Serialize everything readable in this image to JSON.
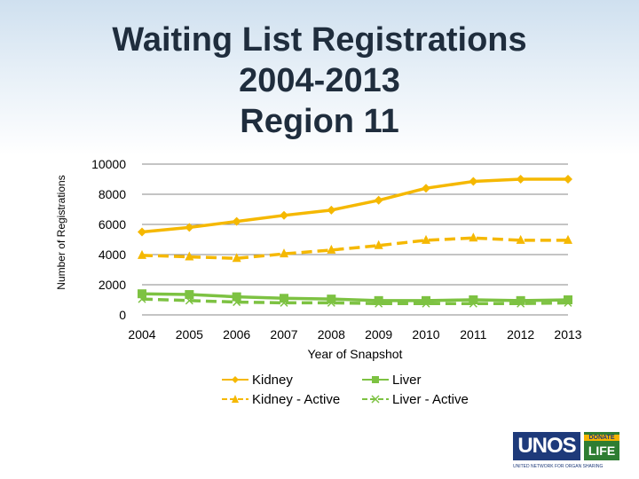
{
  "slide": {
    "title_lines": [
      "Waiting List Registrations",
      "2004-2013",
      "Region 11"
    ]
  },
  "chart_data": {
    "type": "line",
    "title": "",
    "xlabel": "Year of Snapshot",
    "ylabel": "Number of Registrations",
    "x": [
      "2004",
      "2005",
      "2006",
      "2007",
      "2008",
      "2009",
      "2010",
      "2011",
      "2012",
      "2013"
    ],
    "ylim": [
      0,
      10000
    ],
    "yticks": [
      "0",
      "2000",
      "4000",
      "6000",
      "8000",
      "10000"
    ],
    "grid": true,
    "legend_position": "bottom",
    "series": [
      {
        "name": "Kidney",
        "values": [
          5500,
          5800,
          6200,
          6600,
          6950,
          7600,
          8400,
          8850,
          9000,
          9000
        ],
        "color": "#f5b800",
        "dash": "solid",
        "marker": "diamond"
      },
      {
        "name": "Kidney - Active",
        "values": [
          3950,
          3850,
          3750,
          4050,
          4300,
          4600,
          4950,
          5100,
          4950,
          4950
        ],
        "color": "#f5b800",
        "dash": "dashed",
        "marker": "triangle"
      },
      {
        "name": "Liver",
        "values": [
          1400,
          1350,
          1200,
          1100,
          1050,
          950,
          950,
          1000,
          950,
          1000
        ],
        "color": "#7dc242",
        "dash": "solid",
        "marker": "square"
      },
      {
        "name": "Liver - Active",
        "values": [
          1050,
          950,
          850,
          800,
          800,
          750,
          750,
          750,
          750,
          800
        ],
        "color": "#7dc242",
        "dash": "dashed",
        "marker": "x"
      }
    ]
  },
  "logo": {
    "name": "UNOS",
    "badge_top": "DONATE",
    "badge_bottom": "LIFE",
    "tagline": "UNITED NETWORK FOR ORGAN SHARING"
  }
}
